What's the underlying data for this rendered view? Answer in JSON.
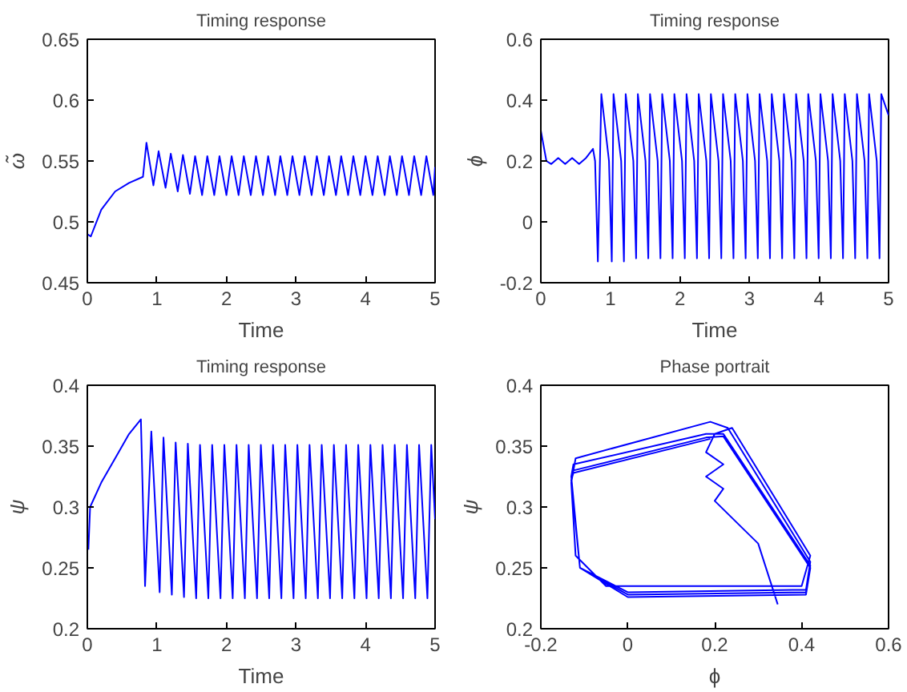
{
  "chart_data": [
    {
      "type": "line",
      "title": "Timing response",
      "xlabel": "Time",
      "ylabel": "ω̃",
      "color": "#0000ff",
      "x": [
        0,
        0.05,
        0.2,
        0.4,
        0.6,
        0.8,
        0.85,
        0.95,
        1.025,
        1.125,
        1.2,
        1.3,
        1.375,
        1.475,
        1.55,
        1.65,
        1.725,
        1.825,
        1.9,
        2,
        2.075,
        2.175,
        2.25,
        2.35,
        2.425,
        2.525,
        2.6,
        2.7,
        2.775,
        2.875,
        2.95,
        3.05,
        3.125,
        3.225,
        3.3,
        3.4,
        3.475,
        3.575,
        3.65,
        3.75,
        3.825,
        3.925,
        4,
        4.1,
        4.175,
        4.275,
        4.35,
        4.45,
        4.525,
        4.625,
        4.7,
        4.8,
        4.875,
        4.975,
        5
      ],
      "values": [
        0.49,
        0.488,
        0.51,
        0.525,
        0.532,
        0.537,
        0.565,
        0.53,
        0.558,
        0.528,
        0.556,
        0.525,
        0.555,
        0.523,
        0.554,
        0.522,
        0.554,
        0.522,
        0.554,
        0.522,
        0.554,
        0.522,
        0.554,
        0.522,
        0.554,
        0.522,
        0.554,
        0.522,
        0.554,
        0.522,
        0.554,
        0.522,
        0.554,
        0.522,
        0.554,
        0.522,
        0.554,
        0.522,
        0.554,
        0.522,
        0.554,
        0.522,
        0.554,
        0.522,
        0.554,
        0.522,
        0.554,
        0.522,
        0.554,
        0.522,
        0.554,
        0.522,
        0.554,
        0.522,
        0.545
      ],
      "xlim": [
        0,
        5
      ],
      "ylim": [
        0.45,
        0.65
      ],
      "xticks": [
        0,
        1,
        2,
        3,
        4,
        5
      ],
      "yticks": [
        0.45,
        0.5,
        0.55,
        0.6,
        0.65
      ]
    },
    {
      "type": "line",
      "title": "Timing response",
      "xlabel": "Time",
      "ylabel": "ϕ",
      "color": "#0000ff",
      "x": [
        0,
        0.08,
        0.15,
        0.25,
        0.35,
        0.45,
        0.55,
        0.65,
        0.75,
        0.78,
        0.82,
        0.87,
        0.98,
        1.02,
        1.045,
        1.155,
        1.195,
        1.22,
        1.33,
        1.37,
        1.395,
        1.505,
        1.545,
        1.57,
        1.68,
        1.72,
        1.745,
        1.855,
        1.895,
        1.92,
        2.03,
        2.07,
        2.095,
        2.205,
        2.245,
        2.27,
        2.38,
        2.42,
        2.445,
        2.555,
        2.595,
        2.62,
        2.73,
        2.77,
        2.795,
        2.905,
        2.945,
        2.97,
        3.08,
        3.12,
        3.145,
        3.255,
        3.295,
        3.32,
        3.43,
        3.47,
        3.495,
        3.605,
        3.645,
        3.67,
        3.78,
        3.82,
        3.845,
        3.955,
        3.995,
        4.02,
        4.13,
        4.17,
        4.195,
        4.305,
        4.345,
        4.37,
        4.48,
        4.52,
        4.545,
        4.655,
        4.695,
        4.72,
        4.83,
        4.87,
        4.895,
        5
      ],
      "values": [
        0.3,
        0.2,
        0.19,
        0.21,
        0.19,
        0.21,
        0.19,
        0.21,
        0.24,
        0.2,
        -0.13,
        0.42,
        0.2,
        -0.13,
        0.42,
        0.2,
        -0.13,
        0.42,
        0.2,
        -0.12,
        0.42,
        0.2,
        -0.12,
        0.42,
        0.2,
        -0.12,
        0.42,
        0.2,
        -0.12,
        0.42,
        0.2,
        -0.12,
        0.42,
        0.2,
        -0.12,
        0.42,
        0.2,
        -0.12,
        0.42,
        0.2,
        -0.12,
        0.42,
        0.2,
        -0.12,
        0.42,
        0.2,
        -0.12,
        0.42,
        0.2,
        -0.12,
        0.42,
        0.2,
        -0.12,
        0.42,
        0.2,
        -0.12,
        0.42,
        0.2,
        -0.12,
        0.42,
        0.2,
        -0.12,
        0.42,
        0.2,
        -0.12,
        0.42,
        0.2,
        -0.12,
        0.42,
        0.2,
        -0.12,
        0.42,
        0.2,
        -0.12,
        0.42,
        0.2,
        -0.12,
        0.42,
        0.2,
        -0.12,
        0.42,
        0.35
      ],
      "xlim": [
        0,
        5
      ],
      "ylim": [
        -0.2,
        0.6
      ],
      "xticks": [
        0,
        1,
        2,
        3,
        4,
        5
      ],
      "yticks": [
        -0.2,
        0,
        0.2,
        0.4,
        0.6
      ]
    },
    {
      "type": "line",
      "title": "Timing response",
      "xlabel": "Time",
      "ylabel": "ψ",
      "color": "#0000ff",
      "x": [
        0.015,
        0.04,
        0.2,
        0.4,
        0.6,
        0.77,
        0.83,
        0.92,
        1.04,
        1.095,
        1.215,
        1.27,
        1.39,
        1.445,
        1.565,
        1.62,
        1.74,
        1.795,
        1.915,
        1.97,
        2.09,
        2.145,
        2.265,
        2.32,
        2.44,
        2.495,
        2.615,
        2.67,
        2.79,
        2.845,
        2.965,
        3.02,
        3.14,
        3.195,
        3.315,
        3.37,
        3.49,
        3.545,
        3.665,
        3.72,
        3.84,
        3.895,
        4.015,
        4.07,
        4.19,
        4.245,
        4.365,
        4.42,
        4.54,
        4.595,
        4.715,
        4.77,
        4.89,
        4.945,
        5
      ],
      "values": [
        0.265,
        0.3,
        0.32,
        0.34,
        0.36,
        0.372,
        0.235,
        0.362,
        0.23,
        0.357,
        0.228,
        0.353,
        0.226,
        0.352,
        0.225,
        0.351,
        0.225,
        0.351,
        0.225,
        0.351,
        0.225,
        0.351,
        0.225,
        0.351,
        0.225,
        0.351,
        0.225,
        0.351,
        0.225,
        0.351,
        0.225,
        0.351,
        0.225,
        0.351,
        0.225,
        0.351,
        0.225,
        0.351,
        0.225,
        0.351,
        0.225,
        0.351,
        0.225,
        0.351,
        0.225,
        0.351,
        0.225,
        0.351,
        0.225,
        0.351,
        0.225,
        0.351,
        0.225,
        0.351,
        0.29
      ],
      "xlim": [
        0,
        5
      ],
      "ylim": [
        0.2,
        0.4
      ],
      "xticks": [
        0,
        1,
        2,
        3,
        4,
        5
      ],
      "yticks": [
        0.2,
        0.25,
        0.3,
        0.35,
        0.4
      ]
    },
    {
      "type": "line",
      "title": "Phase portrait",
      "xlabel": "ϕ",
      "ylabel": "ψ",
      "color": "#0000ff",
      "x": [
        0.345,
        0.3,
        0.2,
        0.22,
        0.18,
        0.22,
        0.18,
        0.2,
        0.24,
        0.42,
        0.4,
        0.2,
        -0.05,
        -0.12,
        -0.13,
        -0.12,
        0.19,
        0.23,
        0.42,
        0.41,
        0,
        -0.11,
        -0.13,
        -0.125,
        0.18,
        0.22,
        0.42,
        0.41,
        0,
        -0.11,
        -0.13,
        -0.125,
        0.18,
        0.22,
        0.42,
        0.41,
        0,
        -0.11,
        -0.13,
        -0.125,
        0.19
      ],
      "values": [
        0.22,
        0.27,
        0.305,
        0.315,
        0.325,
        0.335,
        0.345,
        0.36,
        0.365,
        0.26,
        0.235,
        0.235,
        0.235,
        0.26,
        0.32,
        0.34,
        0.37,
        0.365,
        0.255,
        0.232,
        0.23,
        0.25,
        0.325,
        0.335,
        0.36,
        0.36,
        0.252,
        0.23,
        0.228,
        0.25,
        0.322,
        0.33,
        0.357,
        0.358,
        0.25,
        0.228,
        0.226,
        0.25,
        0.322,
        0.328,
        0.356
      ],
      "xlim": [
        -0.2,
        0.6
      ],
      "ylim": [
        0.2,
        0.4
      ],
      "xticks": [
        -0.2,
        0,
        0.2,
        0.4,
        0.6
      ],
      "yticks": [
        0.2,
        0.25,
        0.3,
        0.35,
        0.4
      ]
    }
  ]
}
